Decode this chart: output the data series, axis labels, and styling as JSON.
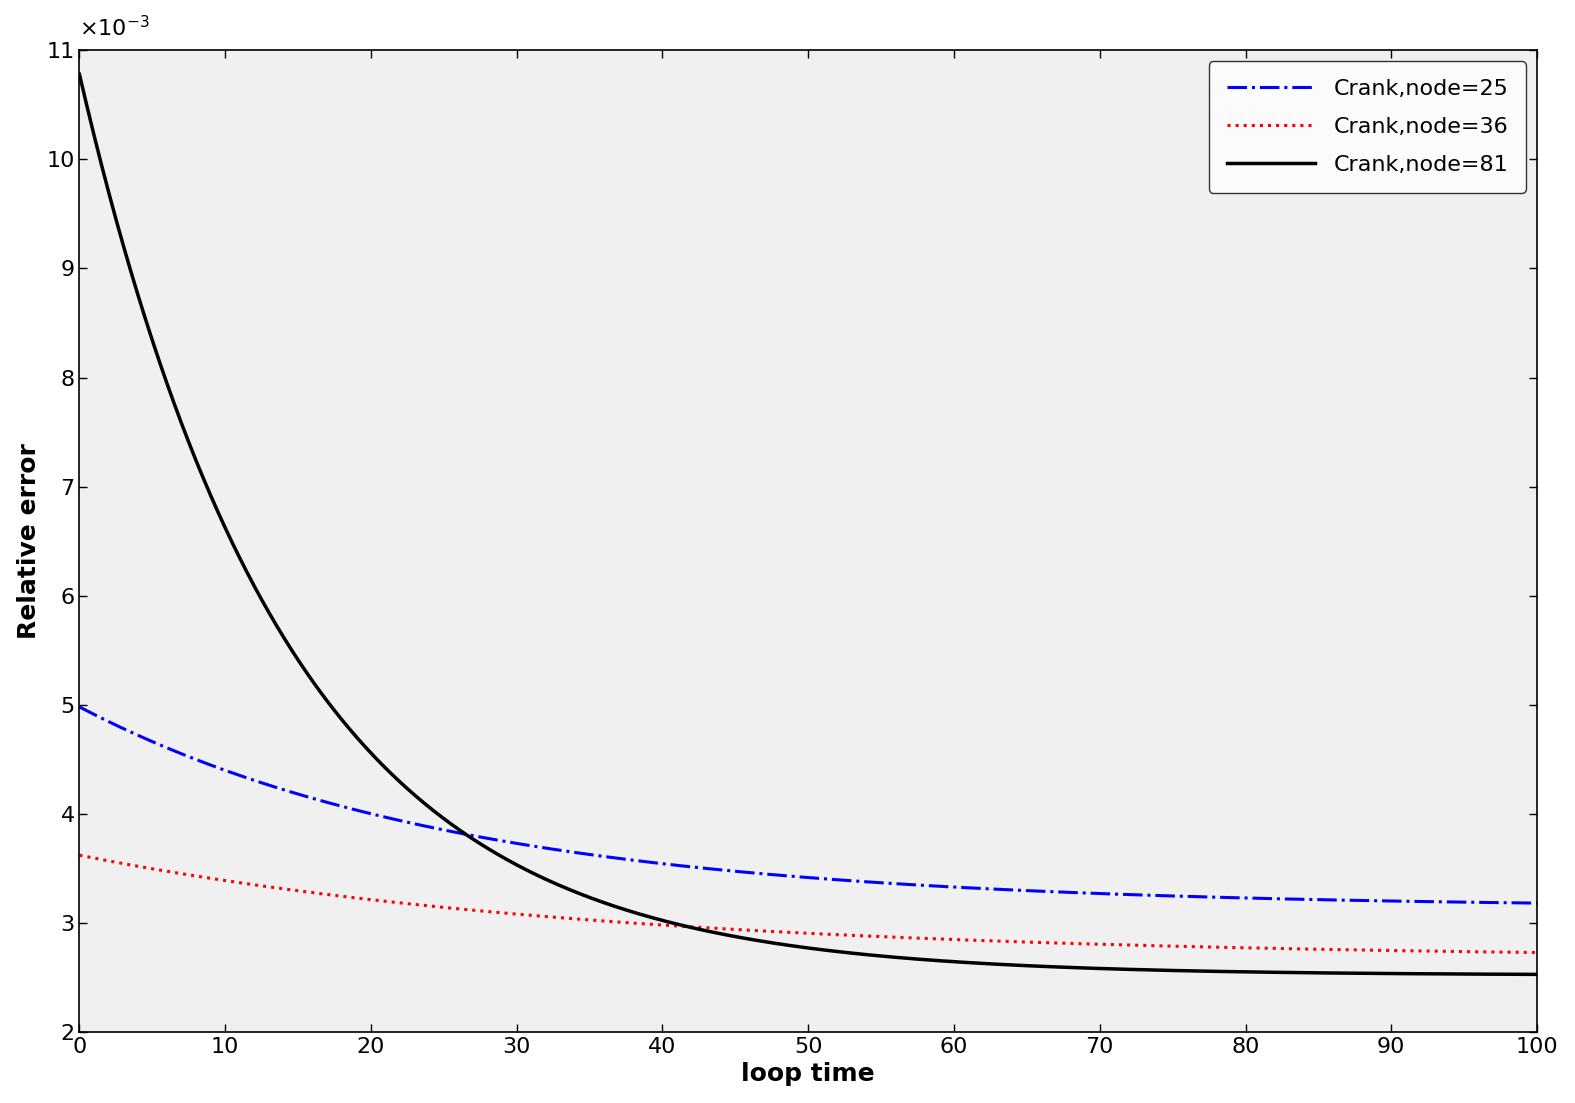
{
  "xlim": [
    0,
    100
  ],
  "ylim": [
    2,
    11
  ],
  "yticks": [
    2,
    3,
    4,
    5,
    6,
    7,
    8,
    9,
    10,
    11
  ],
  "xticks": [
    0,
    10,
    20,
    30,
    40,
    50,
    60,
    70,
    80,
    90,
    100
  ],
  "xlabel": "loop time",
  "ylabel": "Relative error",
  "ylabel_fontsize": 18,
  "xlabel_fontsize": 18,
  "tick_fontsize": 16,
  "legend_labels": [
    "Crank,node=25",
    "Crank,node=36",
    "Crank,node=81"
  ],
  "legend_fontsize": 16,
  "line_node25": {
    "color": "#0000FF",
    "linestyle": "-.",
    "linewidth": 2.2,
    "y0": 4.98,
    "y_inf": 3.14,
    "decay": 0.038
  },
  "line_node36": {
    "color": "#FF0000",
    "linestyle": ":",
    "linewidth": 2.2,
    "y0": 3.62,
    "y_inf": 2.67,
    "decay": 0.028
  },
  "line_node81": {
    "color": "#000000",
    "linestyle": "-",
    "linewidth": 2.5,
    "y0": 10.78,
    "y_inf": 2.52,
    "decay": 0.07
  },
  "bg_color": "#F0F0F0",
  "fig_color": "#FFFFFF"
}
